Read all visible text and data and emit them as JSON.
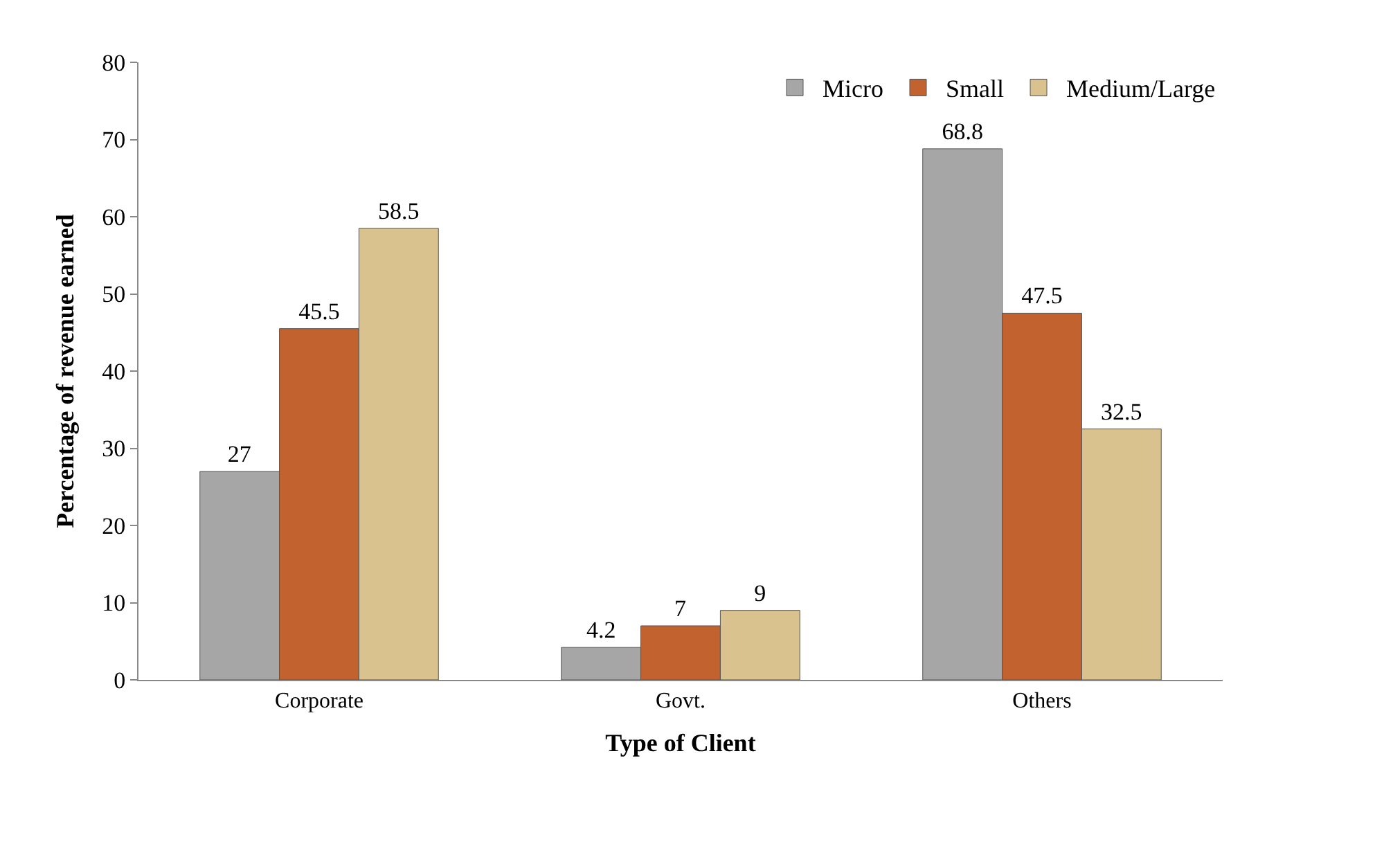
{
  "chart_data": {
    "type": "bar",
    "xlabel": "Type of Client",
    "ylabel": "Percentage of revenue earned",
    "categories": [
      "Corporate",
      "Govt.",
      "Others"
    ],
    "series": [
      {
        "name": "Micro",
        "color": "#a6a6a6",
        "values": [
          27,
          4.2,
          68.8
        ]
      },
      {
        "name": "Small",
        "color": "#c2622e",
        "values": [
          45.5,
          7,
          47.5
        ]
      },
      {
        "name": "Medium/Large",
        "color": "#d9c28e",
        "values": [
          58.5,
          9,
          32.5
        ]
      }
    ],
    "ylim": [
      0,
      80
    ],
    "yticks": [
      0,
      10,
      20,
      30,
      40,
      50,
      60,
      70,
      80
    ],
    "legend": "top right",
    "data_labels": true
  }
}
